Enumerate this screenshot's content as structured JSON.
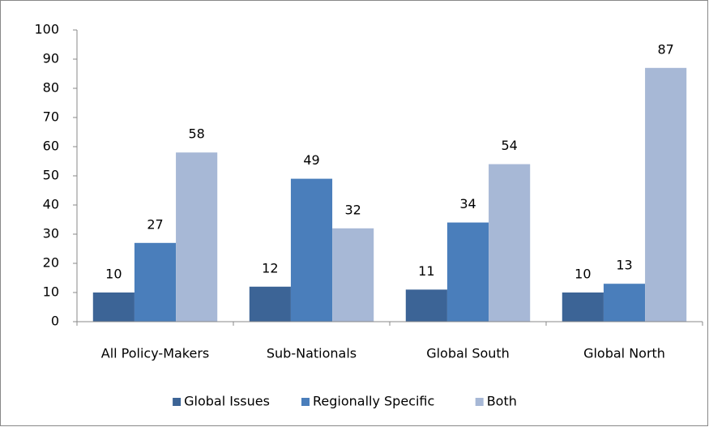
{
  "chart_data": {
    "type": "bar",
    "categories": [
      "All Policy-Makers",
      "Sub-Nationals",
      "Global South",
      "Global North"
    ],
    "series": [
      {
        "name": "Global Issues",
        "color": "#3c6496",
        "values": [
          10,
          12,
          11,
          10
        ]
      },
      {
        "name": "Regionally Specific",
        "color": "#4a7ebb",
        "values": [
          27,
          49,
          34,
          13
        ]
      },
      {
        "name": "Both",
        "color": "#a7b8d6",
        "values": [
          58,
          32,
          54,
          87
        ]
      }
    ],
    "ylim": [
      0,
      100
    ],
    "yticks": [
      0,
      10,
      20,
      30,
      40,
      50,
      60,
      70,
      80,
      90,
      100
    ],
    "grid": false,
    "legend": "bottom"
  }
}
